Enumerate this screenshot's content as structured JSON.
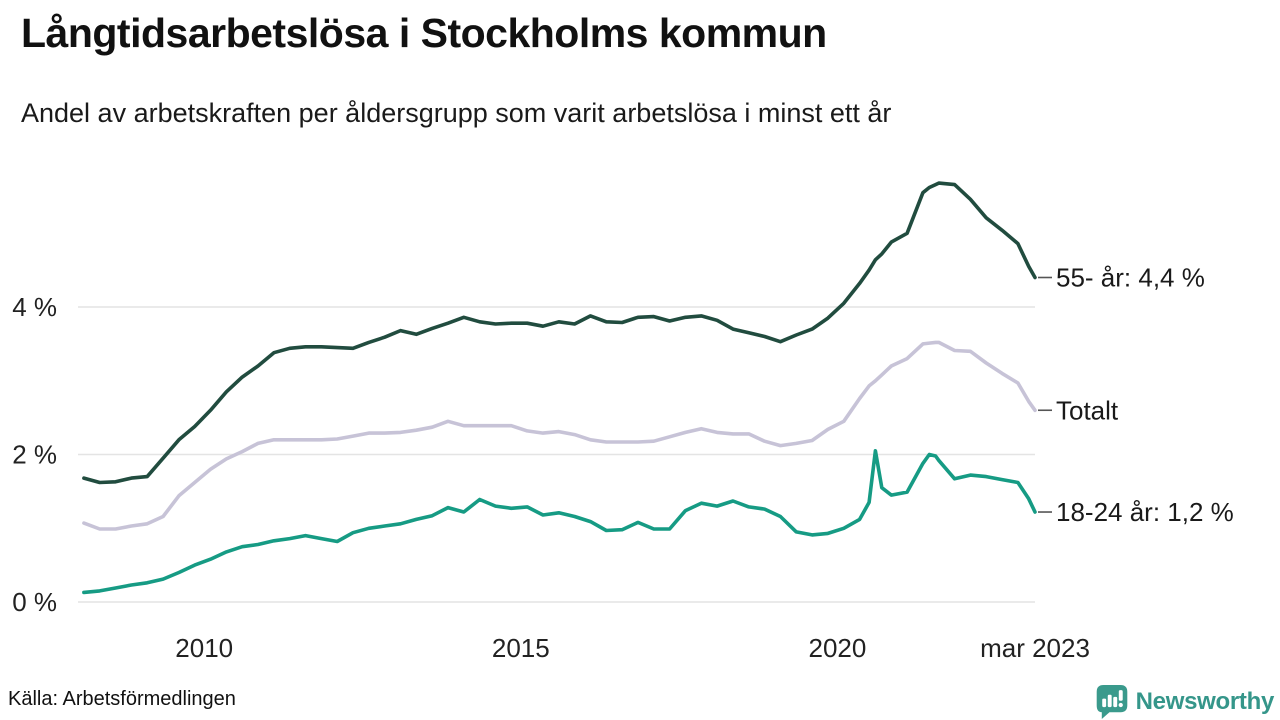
{
  "header": {
    "title_ref": "see chart_data.title",
    "subtitle_ref": "see chart_data.subtitle"
  },
  "footer": {
    "brand": "Newsworthy",
    "brand_icon": "speech-bubble-bar-chart-icon"
  },
  "colors": {
    "background": "#ffffff",
    "gridline": "#e4e4e4",
    "title_text": "#111111",
    "body_text": "#1a1a1a",
    "series_55": "#214c3f",
    "series_totalt": "#c7c3d7",
    "series_18_24": "#169b84",
    "brand_teal": "#3a9a8c"
  },
  "chart_data": {
    "type": "line",
    "title": "Långtidsarbetslösa i Stockholms kommun",
    "subtitle": "Andel av arbetskraften per åldersgrupp som varit arbetslösa i minst ett år",
    "source": "Källa: Arbetsförmedlingen",
    "xlabel": "",
    "ylabel": "",
    "x_unit": "decimal_year_monthly_series",
    "xlim": [
      2008.07,
      2023.12
    ],
    "ylim": [
      0,
      5.9
    ],
    "grid": "horizontal",
    "legend_position": "right-of-line-ends",
    "yticks": [
      {
        "value": 0,
        "label": "0 %"
      },
      {
        "value": 2,
        "label": "2 %"
      },
      {
        "value": 4,
        "label": "4 %"
      }
    ],
    "xticks": [
      {
        "value": 2010,
        "label": "2010"
      },
      {
        "value": 2015,
        "label": "2015"
      },
      {
        "value": 2020,
        "label": "2020"
      },
      {
        "value": 2023.12,
        "label": "mar 2023"
      }
    ],
    "x": [
      2008.1,
      2008.35,
      2008.6,
      2008.85,
      2009.1,
      2009.35,
      2009.6,
      2009.85,
      2010.1,
      2010.35,
      2010.6,
      2010.85,
      2011.1,
      2011.35,
      2011.6,
      2011.85,
      2012.1,
      2012.35,
      2012.6,
      2012.85,
      2013.1,
      2013.35,
      2013.6,
      2013.85,
      2014.1,
      2014.35,
      2014.6,
      2014.85,
      2015.1,
      2015.35,
      2015.6,
      2015.85,
      2016.1,
      2016.35,
      2016.6,
      2016.85,
      2017.1,
      2017.35,
      2017.6,
      2017.85,
      2018.1,
      2018.35,
      2018.6,
      2018.85,
      2019.1,
      2019.35,
      2019.6,
      2019.85,
      2020.1,
      2020.35,
      2020.5,
      2020.6,
      2020.7,
      2020.85,
      2021.1,
      2021.35,
      2021.45,
      2021.55,
      2021.6,
      2021.85,
      2022.1,
      2022.35,
      2022.6,
      2022.85,
      2023.02,
      2023.12
    ],
    "series": [
      {
        "id": "55",
        "name": "55- år",
        "end_label": "55- år: 4,4 %",
        "end_value_label": "4,4 %",
        "color": "#214c3f",
        "values": [
          1.68,
          1.62,
          1.63,
          1.68,
          1.7,
          1.95,
          2.2,
          2.38,
          2.6,
          2.85,
          3.05,
          3.2,
          3.38,
          3.44,
          3.46,
          3.46,
          3.45,
          3.44,
          3.52,
          3.59,
          3.68,
          3.63,
          3.71,
          3.78,
          3.86,
          3.8,
          3.77,
          3.78,
          3.78,
          3.74,
          3.8,
          3.77,
          3.88,
          3.8,
          3.79,
          3.86,
          3.87,
          3.81,
          3.86,
          3.88,
          3.82,
          3.7,
          3.65,
          3.6,
          3.53,
          3.62,
          3.7,
          3.85,
          4.05,
          4.32,
          4.5,
          4.64,
          4.72,
          4.88,
          5.0,
          5.55,
          5.62,
          5.66,
          5.68,
          5.66,
          5.46,
          5.21,
          5.04,
          4.86,
          4.55,
          4.4
        ]
      },
      {
        "id": "totalt",
        "name": "Totalt",
        "end_label": "Totalt",
        "end_value_label": "",
        "color": "#c7c3d7",
        "values": [
          1.07,
          0.99,
          0.99,
          1.03,
          1.06,
          1.16,
          1.44,
          1.62,
          1.8,
          1.94,
          2.04,
          2.15,
          2.2,
          2.2,
          2.2,
          2.2,
          2.21,
          2.25,
          2.29,
          2.29,
          2.3,
          2.33,
          2.37,
          2.45,
          2.39,
          2.39,
          2.39,
          2.39,
          2.32,
          2.29,
          2.31,
          2.27,
          2.2,
          2.17,
          2.17,
          2.17,
          2.18,
          2.24,
          2.3,
          2.35,
          2.3,
          2.28,
          2.28,
          2.18,
          2.12,
          2.15,
          2.19,
          2.34,
          2.45,
          2.76,
          2.93,
          3.0,
          3.08,
          3.2,
          3.3,
          3.5,
          3.51,
          3.52,
          3.52,
          3.41,
          3.4,
          3.24,
          3.1,
          2.97,
          2.72,
          2.6
        ]
      },
      {
        "id": "18-24",
        "name": "18-24 år",
        "end_label": "18-24 år: 1,2 %",
        "end_value_label": "1,2 %",
        "color": "#169b84",
        "values": [
          0.13,
          0.15,
          0.19,
          0.23,
          0.26,
          0.31,
          0.4,
          0.5,
          0.58,
          0.68,
          0.75,
          0.78,
          0.83,
          0.86,
          0.9,
          0.86,
          0.82,
          0.94,
          1.0,
          1.03,
          1.06,
          1.12,
          1.17,
          1.28,
          1.22,
          1.39,
          1.3,
          1.27,
          1.29,
          1.18,
          1.21,
          1.16,
          1.09,
          0.97,
          0.98,
          1.08,
          0.99,
          0.99,
          1.24,
          1.34,
          1.3,
          1.37,
          1.29,
          1.26,
          1.16,
          0.95,
          0.91,
          0.93,
          1.0,
          1.12,
          1.35,
          2.05,
          1.55,
          1.45,
          1.49,
          1.88,
          2.0,
          1.98,
          1.92,
          1.67,
          1.72,
          1.7,
          1.66,
          1.62,
          1.4,
          1.22
        ]
      }
    ]
  }
}
